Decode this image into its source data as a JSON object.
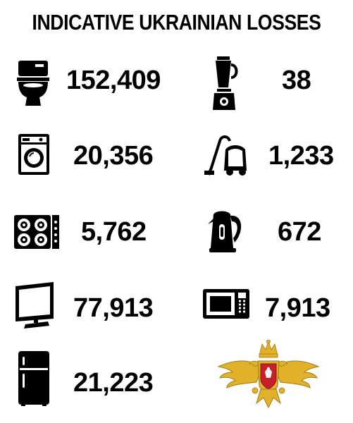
{
  "title": "INDICATIVE UKRAINIAN LOSSES",
  "left_column": [
    {
      "icon": "toilet-icon",
      "value": "152,409"
    },
    {
      "icon": "washing-machine-icon",
      "value": "20,356"
    },
    {
      "icon": "stove-hob-icon",
      "value": "5,762"
    },
    {
      "icon": "television-icon",
      "value": "77,913"
    },
    {
      "icon": "refrigerator-icon",
      "value": "21,223"
    }
  ],
  "right_column": [
    {
      "icon": "blender-icon",
      "value": "38"
    },
    {
      "icon": "vacuum-cleaner-icon",
      "value": "1,233"
    },
    {
      "icon": "electric-kettle-icon",
      "value": "672"
    },
    {
      "icon": "microwave-icon",
      "value": "7,913"
    }
  ],
  "emblem": {
    "icon": "double-headed-eagle-emblem-icon"
  },
  "colors": {
    "text": "#000000",
    "background": "#ffffff",
    "emblem_gold": "#e2b12a",
    "emblem_red": "#c8202a"
  }
}
